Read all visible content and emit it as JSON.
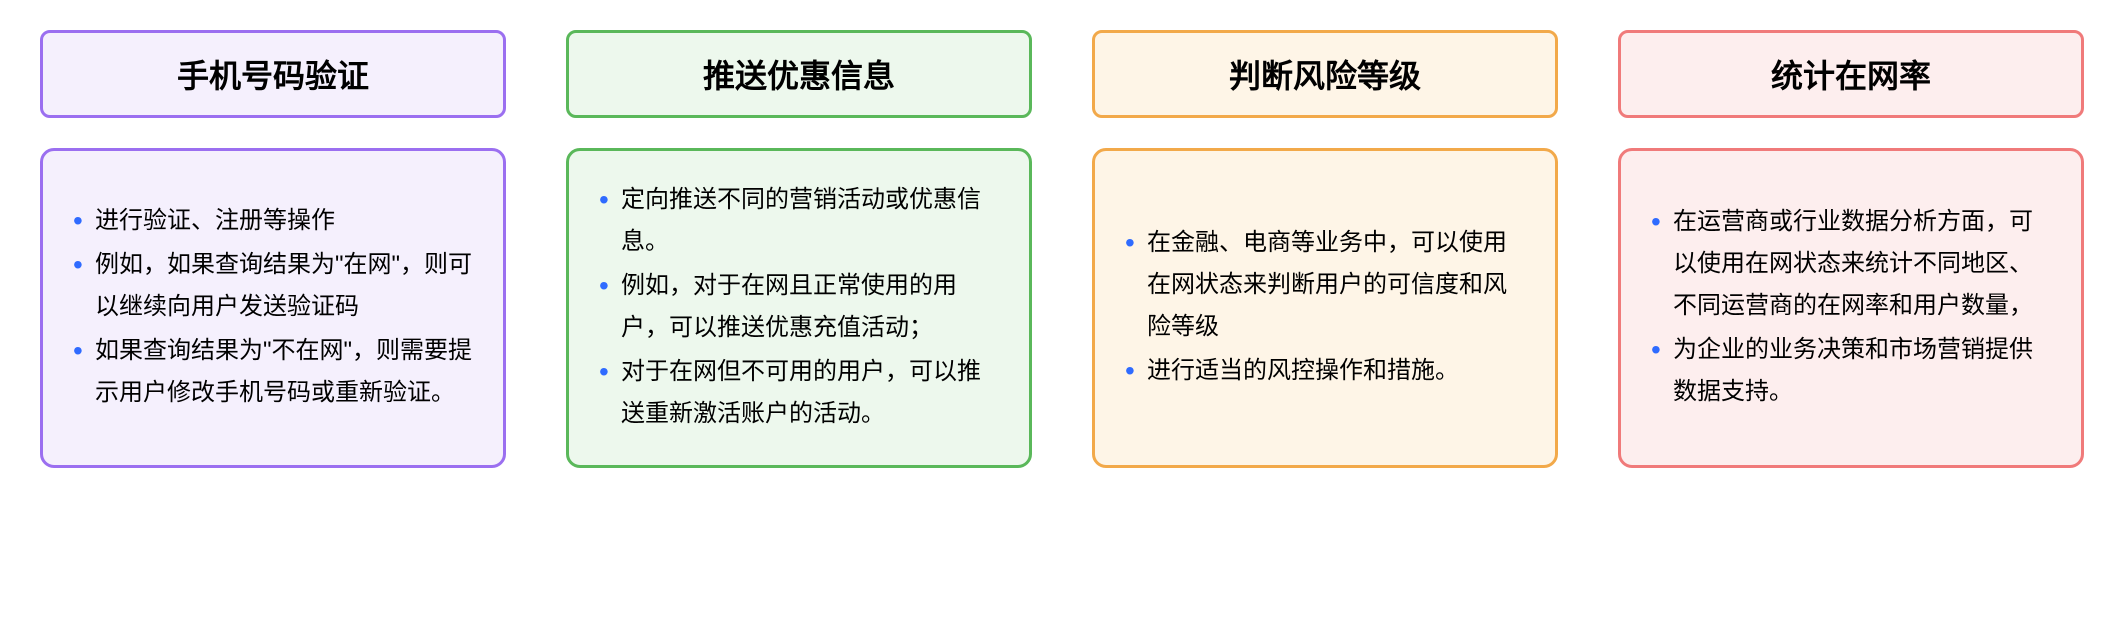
{
  "cards": [
    {
      "title": "手机号码验证",
      "border_color": "#9b6ff0",
      "bg_color": "#f5f0fd",
      "items": [
        "进行验证、注册等操作",
        "例如，如果查询结果为\"在网\"，则可以继续向用户发送验证码",
        "如果查询结果为\"不在网\"，则需要提示用户修改手机号码或重新验证。"
      ]
    },
    {
      "title": "推送优惠信息",
      "border_color": "#5ab85a",
      "bg_color": "#edf8ed",
      "items": [
        "定向推送不同的营销活动或优惠信息。",
        "例如，对于在网且正常使用的用户，可以推送优惠充值活动；",
        "对于在网但不可用的用户，可以推送重新激活账户的活动。"
      ]
    },
    {
      "title": "判断风险等级",
      "border_color": "#f2a94a",
      "bg_color": "#fef5e7",
      "items": [
        "在金融、电商等业务中，可以使用在网状态来判断用户的可信度和风险等级",
        "进行适当的风控操作和措施。"
      ]
    },
    {
      "title": "统计在网率",
      "border_color": "#f07a7a",
      "bg_color": "#fdeeee",
      "items": [
        "在运营商或行业数据分析方面，可以使用在网状态来统计不同地区、不同运营商的在网率和用户数量，",
        "为企业的业务决策和市场营销提供数据支持。"
      ]
    }
  ],
  "bullet_color": "#2f6bff"
}
